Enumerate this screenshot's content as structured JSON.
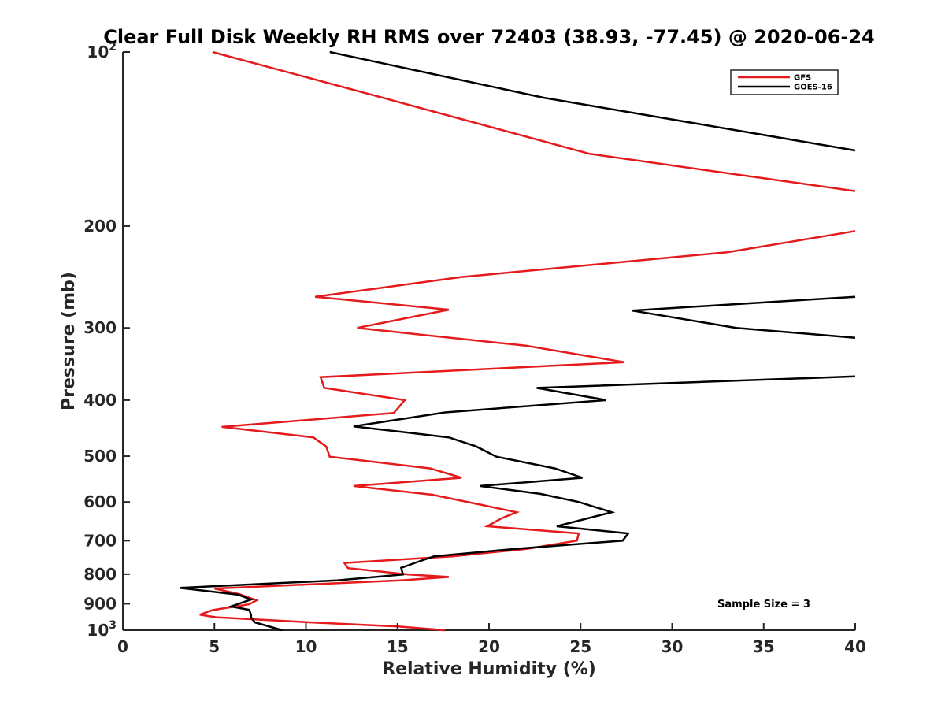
{
  "chart_data": {
    "type": "line",
    "title": "Clear Full Disk Weekly RH RMS over 72403 (38.93, -77.45) @ 2020-06-24",
    "xlabel": "Relative Humidity (%)",
    "ylabel": "Pressure (mb)",
    "xlim": [
      0,
      40
    ],
    "ylim": [
      100,
      1000
    ],
    "yscale": "log",
    "y_reversed": true,
    "grid": false,
    "legend_position": "top-right",
    "x_ticks": [
      0,
      5,
      10,
      15,
      20,
      25,
      30,
      35,
      40
    ],
    "y_ticks": [
      {
        "value": 100,
        "base": "10",
        "exp": "2"
      },
      {
        "value": 200,
        "label": "200"
      },
      {
        "value": 300,
        "label": "300"
      },
      {
        "value": 400,
        "label": "400"
      },
      {
        "value": 500,
        "label": "500"
      },
      {
        "value": 600,
        "label": "600"
      },
      {
        "value": 700,
        "label": "700"
      },
      {
        "value": 800,
        "label": "800"
      },
      {
        "value": 900,
        "label": "900"
      },
      {
        "value": 1000,
        "base": "10",
        "exp": "3"
      }
    ],
    "annotation": "Sample Size = 3",
    "series": [
      {
        "name": "GFS",
        "color": "#e41a1c",
        "points": [
          [
            4.9,
            100
          ],
          [
            14.2,
            120
          ],
          [
            25.5,
            150
          ],
          [
            40.0,
            174
          ],
          null,
          [
            40.0,
            204
          ],
          [
            33.0,
            222
          ],
          [
            18.5,
            245
          ],
          [
            10.5,
            265
          ],
          [
            17.8,
            279
          ],
          [
            12.8,
            300
          ],
          [
            22.0,
            322
          ],
          [
            27.4,
            344
          ],
          [
            10.8,
            365
          ],
          [
            11.0,
            381
          ],
          [
            15.4,
            400
          ],
          [
            14.8,
            421
          ],
          [
            5.4,
            445
          ],
          [
            10.4,
            464
          ],
          [
            11.1,
            481
          ],
          [
            11.3,
            501
          ],
          [
            16.8,
            525
          ],
          [
            18.5,
            545
          ],
          [
            12.6,
            563
          ],
          [
            16.9,
            583
          ],
          [
            19.6,
            607
          ],
          [
            21.5,
            625
          ],
          [
            20.7,
            640
          ],
          [
            19.9,
            661
          ],
          [
            24.9,
            680
          ],
          [
            24.8,
            700
          ],
          [
            22.1,
            723
          ],
          [
            18.0,
            745
          ],
          [
            12.1,
            765
          ],
          [
            12.3,
            781
          ],
          [
            15.6,
            801
          ],
          [
            17.8,
            809
          ],
          [
            15.2,
            820
          ],
          [
            5.0,
            847
          ],
          [
            6.4,
            867
          ],
          [
            7.3,
            888
          ],
          [
            6.9,
            902
          ],
          [
            4.9,
            923
          ],
          [
            4.2,
            940
          ],
          [
            5.1,
            950
          ],
          [
            10.2,
            969
          ],
          [
            15.0,
            985
          ],
          [
            17.6,
            1000
          ]
        ]
      },
      {
        "name": "GOES-16",
        "color": "#000000",
        "points": [
          [
            11.3,
            100
          ],
          [
            23.0,
            120
          ],
          [
            40.0,
            148
          ],
          null,
          [
            40.0,
            265
          ],
          [
            27.8,
            280
          ],
          [
            33.5,
            300
          ],
          [
            40.0,
            312
          ],
          null,
          [
            40.0,
            364
          ],
          [
            22.6,
            381
          ],
          [
            26.4,
            400
          ],
          [
            17.6,
            420
          ],
          [
            12.6,
            444
          ],
          [
            17.8,
            464
          ],
          [
            19.3,
            481
          ],
          [
            20.4,
            501
          ],
          [
            23.6,
            525
          ],
          [
            25.1,
            545
          ],
          [
            19.5,
            563
          ],
          [
            22.8,
            581
          ],
          [
            24.9,
            600
          ],
          [
            26.7,
            625
          ],
          [
            23.7,
            661
          ],
          [
            27.6,
            680
          ],
          [
            27.3,
            700
          ],
          [
            21.5,
            723
          ],
          [
            17.0,
            745
          ],
          [
            16.2,
            760
          ],
          [
            15.2,
            780
          ],
          [
            15.3,
            801
          ],
          [
            11.7,
            820
          ],
          [
            3.1,
            845
          ],
          [
            6.3,
            868
          ],
          [
            7.0,
            885
          ],
          [
            6.2,
            903
          ],
          [
            5.9,
            910
          ],
          [
            6.9,
            922
          ],
          [
            7.0,
            940
          ],
          [
            7.0,
            950
          ],
          [
            7.2,
            969
          ],
          [
            8.7,
            1000
          ]
        ]
      }
    ]
  }
}
